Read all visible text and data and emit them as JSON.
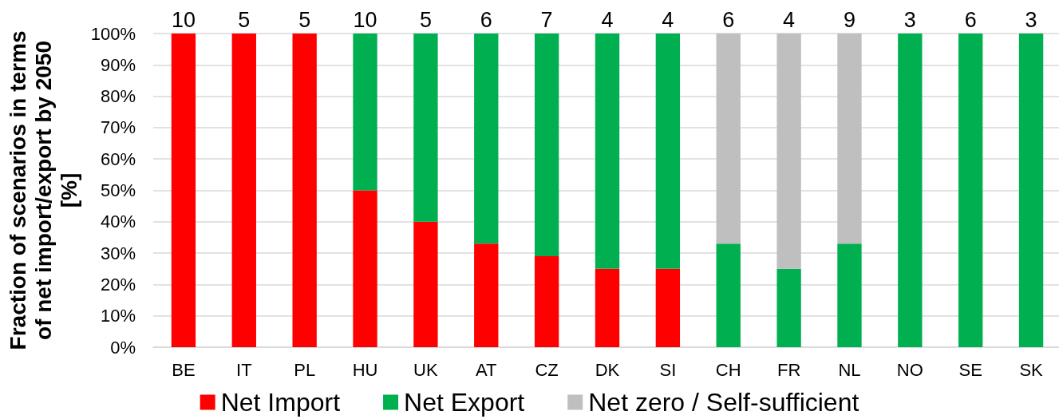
{
  "chart_data": {
    "type": "bar",
    "stacked": true,
    "categories": [
      "BE",
      "IT",
      "PL",
      "HU",
      "UK",
      "AT",
      "CZ",
      "DK",
      "SI",
      "CH",
      "FR",
      "NL",
      "NO",
      "SE",
      "SK"
    ],
    "series": [
      {
        "name": "Net Import",
        "color": "#ff0000",
        "values": [
          100,
          100,
          100,
          50,
          40,
          33,
          29,
          25,
          25,
          null,
          null,
          null,
          null,
          null,
          null
        ]
      },
      {
        "name": "Net Export",
        "color": "#00b050",
        "values": [
          null,
          null,
          null,
          50,
          60,
          67,
          71,
          75,
          75,
          33,
          25,
          33,
          100,
          100,
          100
        ]
      },
      {
        "name": "Net zero / Self-sufficient",
        "color": "#bfbfbf",
        "values": [
          null,
          null,
          null,
          null,
          null,
          null,
          null,
          null,
          null,
          67,
          75,
          67,
          null,
          null,
          null
        ]
      }
    ],
    "annotations": [
      {
        "text": "10",
        "x": "BE",
        "y": 100
      },
      {
        "text": "5",
        "x": "IT",
        "y": 100
      },
      {
        "text": "5",
        "x": "PL",
        "y": 100
      },
      {
        "text": "10",
        "x": "HU",
        "y": 100
      },
      {
        "text": "5",
        "x": "UK",
        "y": 100
      },
      {
        "text": "6",
        "x": "AT",
        "y": 100
      },
      {
        "text": "7",
        "x": "CZ",
        "y": 100
      },
      {
        "text": "4",
        "x": "DK",
        "y": 100
      },
      {
        "text": "4",
        "x": "SI",
        "y": 100
      },
      {
        "text": "6",
        "x": "CH",
        "y": 100
      },
      {
        "text": "4",
        "x": "FR",
        "y": 100
      },
      {
        "text": "9",
        "x": "NL",
        "y": 100
      },
      {
        "text": "3",
        "x": "NO",
        "y": 100
      },
      {
        "text": "6",
        "x": "SE",
        "y": 100
      },
      {
        "text": "3",
        "x": "SK",
        "y": 100
      }
    ],
    "ylabel": "Fraction of scenarios in terms of net import/export by 2050 [%]",
    "ylim": [
      0,
      100
    ],
    "yticks": [
      {
        "value": 0,
        "label": "0%"
      },
      {
        "value": 10,
        "label": "10%"
      },
      {
        "value": 20,
        "label": "20%"
      },
      {
        "value": 30,
        "label": "30%"
      },
      {
        "value": 40,
        "label": "40%"
      },
      {
        "value": 50,
        "label": "50%"
      },
      {
        "value": 60,
        "label": "60%"
      },
      {
        "value": 70,
        "label": "70%"
      },
      {
        "value": 80,
        "label": "80%"
      },
      {
        "value": 90,
        "label": "90%"
      },
      {
        "value": 100,
        "label": "100%"
      }
    ],
    "grid": "y",
    "legend": "bottom"
  }
}
